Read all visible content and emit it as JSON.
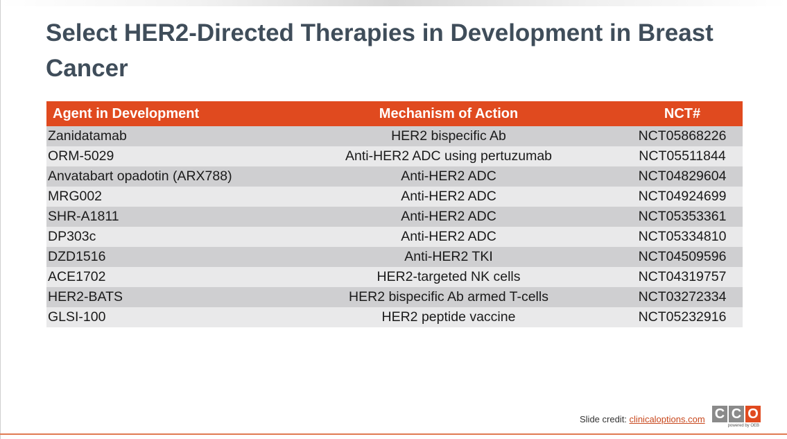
{
  "slide": {
    "title": "Select HER2-Directed Therapies in Development in Breast Cancer"
  },
  "table": {
    "headers": [
      "Agent in Development",
      "Mechanism of Action",
      "NCT#"
    ],
    "rows": [
      [
        "Zanidatamab",
        "HER2 bispecific Ab",
        "NCT05868226"
      ],
      [
        "ORM-5029",
        "Anti-HER2 ADC using pertuzumab",
        "NCT05511844"
      ],
      [
        "Anvatabart opadotin (ARX788)",
        "Anti-HER2 ADC",
        "NCT04829604"
      ],
      [
        "MRG002",
        "Anti-HER2 ADC",
        "NCT04924699"
      ],
      [
        "SHR-A1811",
        "Anti-HER2 ADC",
        "NCT05353361"
      ],
      [
        "DP303c",
        "Anti-HER2 ADC",
        "NCT05334810"
      ],
      [
        "DZD1516",
        "Anti-HER2 TKI",
        "NCT04509596"
      ],
      [
        "ACE1702",
        "HER2-targeted NK cells",
        "NCT04319757"
      ],
      [
        "HER2-BATS",
        "HER2 bispecific Ab armed T-cells",
        "NCT03272334"
      ],
      [
        "GLSI-100",
        "HER2 peptide vaccine",
        "NCT05232916"
      ]
    ]
  },
  "footer": {
    "credit_label": "Slide credit:",
    "credit_link": "clinicaloptions.com",
    "logo_letters": [
      "C",
      "C",
      "O"
    ],
    "logo_tagline": "powered by OEB"
  },
  "colors": {
    "accent": "#e04a1f",
    "title": "#3f4d5a",
    "row_dark": "#cfcfd1",
    "row_light": "#e9e9ea"
  }
}
